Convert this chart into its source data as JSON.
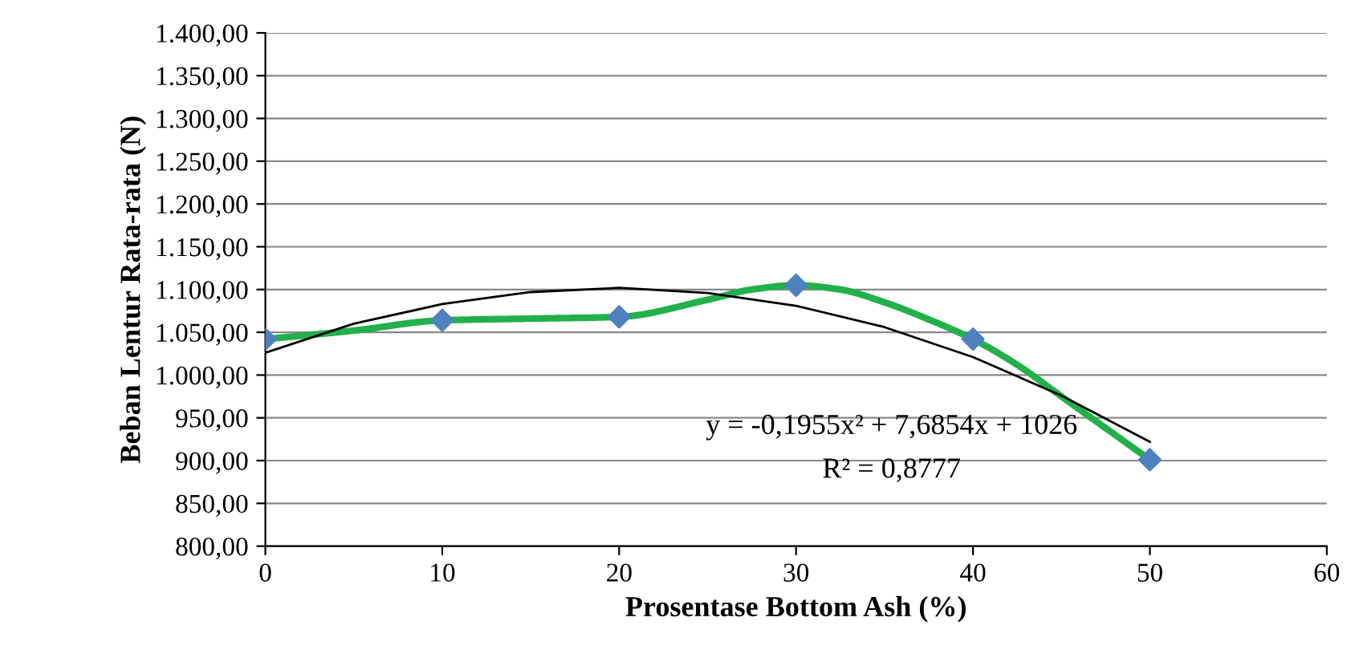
{
  "chart_data": {
    "type": "line",
    "xlabel": "Prosentase Bottom Ash (%)",
    "ylabel": "Beban Lentur Rata-rata (N)",
    "x": [
      0,
      10,
      20,
      30,
      40,
      50
    ],
    "series": [
      {
        "type": "line",
        "color": "#22b04b",
        "x": [
          0,
          5,
          10,
          15,
          20,
          25,
          27.5,
          30,
          32.5,
          35,
          37.5,
          40,
          42.5,
          45,
          47.5,
          50
        ],
        "values": [
          1042,
          1052,
          1064,
          1066,
          1068,
          1088,
          1100,
          1105,
          1100,
          1085,
          1065,
          1042,
          1012,
          975,
          938,
          901
        ],
        "marker": "none"
      },
      {
        "type": "scatter",
        "color": "#4f81bd",
        "values": [
          1042,
          1064,
          1068,
          1105,
          1042,
          901
        ],
        "marker": "diamond"
      },
      {
        "type": "line",
        "color": "#000000",
        "x": [
          0,
          5,
          10,
          15,
          20,
          25,
          30,
          35,
          40,
          45,
          50
        ],
        "values": [
          1026,
          1060,
          1083,
          1097,
          1102,
          1096,
          1081,
          1056,
          1021,
          976,
          922
        ],
        "marker": "none"
      }
    ],
    "xlim": [
      0,
      60
    ],
    "xticks": [
      0,
      10,
      20,
      30,
      40,
      50,
      60
    ],
    "ylim": [
      800,
      1400
    ],
    "yticks": [
      {
        "value": 800,
        "label": "800,00"
      },
      {
        "value": 850,
        "label": "850,00"
      },
      {
        "value": 900,
        "label": "900,00"
      },
      {
        "value": 950,
        "label": "950,00"
      },
      {
        "value": 1000,
        "label": "1.000,00"
      },
      {
        "value": 1050,
        "label": "1.050,00"
      },
      {
        "value": 1100,
        "label": "1.100,00"
      },
      {
        "value": 1150,
        "label": "1.150,00"
      },
      {
        "value": 1200,
        "label": "1.200,00"
      },
      {
        "value": 1250,
        "label": "1.250,00"
      },
      {
        "value": 1300,
        "label": "1.300,00"
      },
      {
        "value": 1350,
        "label": "1.350,00"
      },
      {
        "value": 1400,
        "label": "1.400,00"
      }
    ],
    "grid": "y",
    "legend": false,
    "annotations": [
      "y = -0,1955x² + 7,6854x + 1026",
      "R² = 0,8777"
    ]
  }
}
